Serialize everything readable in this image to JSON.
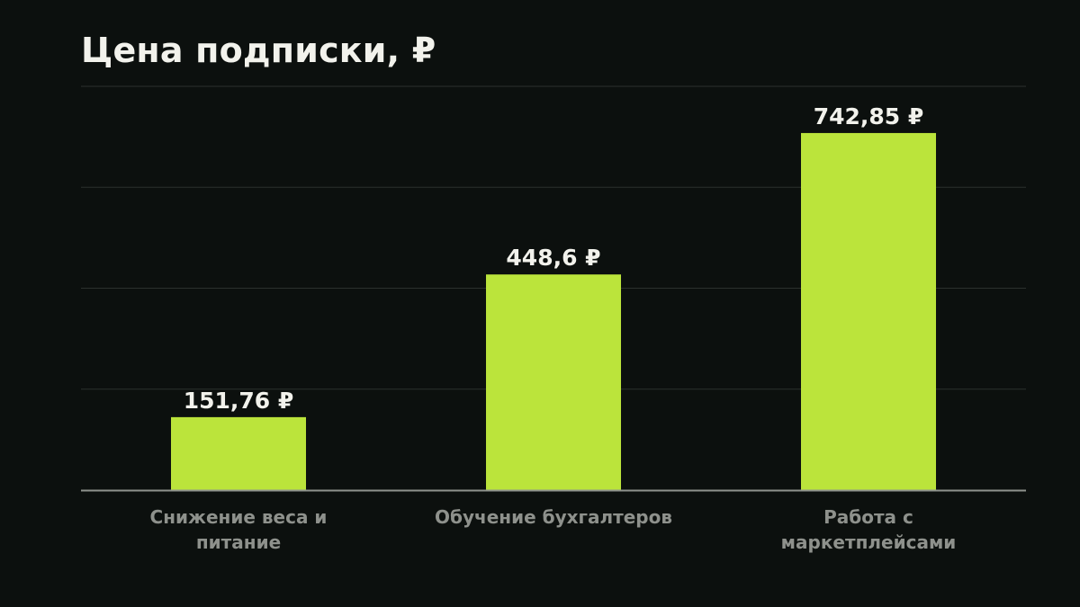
{
  "chart_data": {
    "type": "bar",
    "title": "Цена подписки, ₽",
    "categories": [
      [
        "Снижение веса и",
        "питание"
      ],
      [
        "Обучение бухгалтеров"
      ],
      [
        "Работа с",
        "маркетплейсами"
      ]
    ],
    "values": [
      151.76,
      448.6,
      742.85
    ],
    "value_labels": [
      "151,76 ₽",
      "448,6 ₽",
      "742,85 ₽"
    ],
    "xlabel": "",
    "ylabel": "",
    "ylim": [
      0,
      840
    ],
    "grid": true,
    "legend": "none",
    "bar_color": "#bbe43b",
    "grid_color": "#2b302d",
    "axis_color": "#8f938e"
  }
}
